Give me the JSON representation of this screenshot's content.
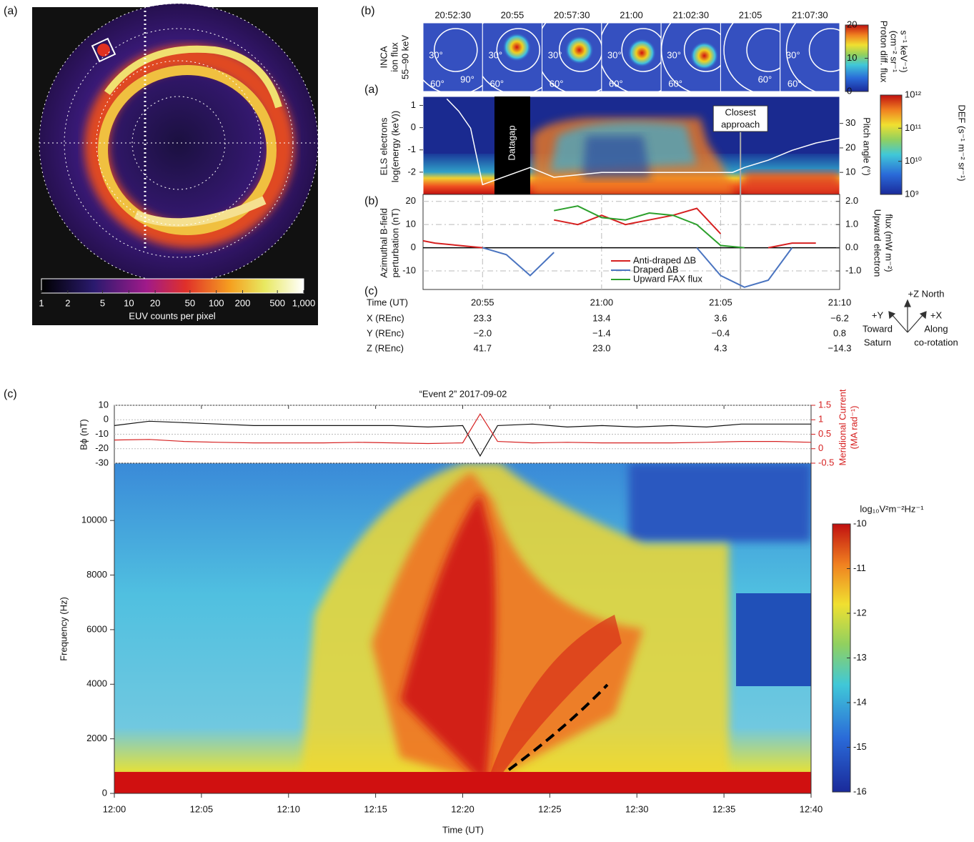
{
  "panel_labels": [
    "(a)",
    "(b)",
    "(a)",
    "(b)",
    "(c)",
    "(c)"
  ],
  "chart_data": [
    {
      "type": "image",
      "colorbar": {
        "log": true,
        "lim": [
          1,
          1000
        ],
        "ticks": [
          1,
          2,
          5,
          10,
          20,
          50,
          100,
          200,
          500,
          {
            "value": 1000,
            "label": "1,000"
          }
        ],
        "label": "EUV counts per pixel"
      }
    },
    {
      "type": "image-strip",
      "ylabel": [
        "INCA",
        "ion flux",
        "55–90 keV"
      ],
      "frames": [
        {
          "time": "20:52:30",
          "angles": [
            "30°",
            "60°",
            "90°"
          ]
        },
        {
          "time": "20:55",
          "angles": [
            "30°",
            "60°"
          ]
        },
        {
          "time": "20:57:30",
          "angles": [
            "30°",
            "60°"
          ]
        },
        {
          "time": "21:00",
          "angles": [
            "30°",
            "60°"
          ]
        },
        {
          "time": "21:02:30",
          "angles": [
            "30°",
            "60°"
          ]
        },
        {
          "time": "21:05",
          "angles": [
            "60°"
          ]
        },
        {
          "time": "21:07:30",
          "angles": [
            "30°",
            "60°"
          ]
        }
      ],
      "colorbar": {
        "lim": [
          0,
          20
        ],
        "ticks": [
          0,
          10,
          20
        ],
        "label": [
          "Proton diff. flux",
          "(cm⁻² sr⁻¹",
          "s⁻¹ keV⁻¹)"
        ]
      }
    },
    {
      "type": "spectrogram",
      "xlim": [
        "20:52:30",
        "21:10"
      ],
      "ylabel": [
        "ELS electrons",
        "log(energy (keV))"
      ],
      "ylim": [
        -3,
        1.4
      ],
      "yticks": [
        -2,
        -1,
        0,
        1
      ],
      "y2label": "Pitch angle (°)",
      "y2lim": [
        1,
        41
      ],
      "y2ticks": [
        10,
        20,
        30
      ],
      "annotations": {
        "datagap": "Datagap",
        "closest": [
          "Closest",
          "approach"
        ]
      },
      "series": [
        {
          "color": "#ffffff",
          "axis": "y2",
          "x": [
            "20:53:30",
            "20:54",
            "20:54:30",
            "20:55",
            "20:57",
            "20:58",
            "21:00",
            "21:02",
            "21:04",
            "21:05:30",
            "21:06",
            "21:07",
            "21:08",
            "21:09",
            "21:10"
          ],
          "values": [
            40,
            35,
            28,
            5,
            12,
            8,
            10,
            10,
            10,
            10,
            12,
            15,
            19,
            22,
            24
          ]
        }
      ],
      "colorbar": {
        "log": true,
        "lim": [
          1000000000,
          1000000000000
        ],
        "ticks": [
          {
            "value": 1000000000,
            "label": "10⁹"
          },
          {
            "value": 10000000000,
            "label": "10¹⁰"
          },
          {
            "value": 100000000000,
            "label": "10¹¹"
          },
          {
            "value": 1000000000000,
            "label": "10¹²"
          }
        ],
        "label": "DEF (s⁻¹ m⁻² sr⁻¹)"
      }
    },
    {
      "type": "line",
      "xlim": [
        "20:52:30",
        "21:10"
      ],
      "xticks": [
        "20:55",
        "21:00",
        "21:05"
      ],
      "ylabel": [
        "Azimuthal B-field",
        "perturbation (nT)"
      ],
      "ylim": [
        -18,
        23
      ],
      "yticks": [
        -10,
        0,
        10,
        20
      ],
      "y2label": [
        "Upward electron",
        "flux (mW m⁻²)"
      ],
      "y2lim": [
        -1.8,
        2.3
      ],
      "y2ticks": [
        {
          "value": -1,
          "label": "-1.0"
        },
        {
          "value": 0,
          "label": "0.0"
        },
        {
          "value": 1,
          "label": "1.0"
        },
        {
          "value": 2,
          "label": "2.0"
        }
      ],
      "x": [
        "20:52:30",
        "20:53",
        "20:54",
        "20:55",
        "20:56",
        "20:57",
        "20:58",
        "20:59",
        "21:00",
        "21:01",
        "21:02",
        "21:03",
        "21:04",
        "21:05",
        "21:06",
        "21:07",
        "21:08",
        "21:09"
      ],
      "series": [
        {
          "name": "Anti-draped ΔB",
          "color": "#d62020",
          "values": [
            3,
            2,
            1,
            0,
            null,
            null,
            12,
            10,
            14,
            10,
            12,
            14,
            17,
            6,
            null,
            0,
            2,
            2
          ]
        },
        {
          "name": "Draped ΔB",
          "color": "#4a74c0",
          "values": [
            null,
            null,
            null,
            0,
            -3,
            -12,
            -2,
            null,
            null,
            null,
            null,
            null,
            0,
            -12,
            -17,
            -14,
            0,
            null
          ]
        },
        {
          "name": "Upward FAX flux",
          "color": "#2ca02c",
          "axis": "y2",
          "values": [
            null,
            null,
            null,
            null,
            null,
            null,
            1.6,
            1.8,
            1.3,
            1.2,
            1.5,
            1.4,
            1.0,
            0.1,
            0,
            null,
            null,
            null
          ]
        }
      ]
    },
    {
      "type": "line-spectrogram",
      "title": "“Event 2” 2017-09-02",
      "xlim": [
        "12:00",
        "12:40"
      ],
      "xticks": [
        "12:00",
        "12:05",
        "12:10",
        "12:15",
        "12:20",
        "12:25",
        "12:30",
        "12:35",
        "12:40"
      ],
      "xlabel": "Time (UT)",
      "ylabel": "Bϕ (nT)",
      "ylim": [
        -30,
        10
      ],
      "yticks": [
        -30,
        -20,
        -10,
        0,
        10
      ],
      "y2label": [
        "Meridional Current",
        "(MA rad⁻¹)"
      ],
      "y2lim": [
        -0.5,
        1.5
      ],
      "y2ticks": [
        -0.5,
        0,
        0.5,
        1,
        1.5
      ],
      "x": [
        "12:00",
        "12:02",
        "12:04",
        "12:06",
        "12:08",
        "12:10",
        "12:12",
        "12:14",
        "12:16",
        "12:18",
        "12:20",
        "12:21",
        "12:22",
        "12:24",
        "12:26",
        "12:28",
        "12:30",
        "12:32",
        "12:34",
        "12:36",
        "12:38",
        "12:40"
      ],
      "series": [
        {
          "color": "#111111",
          "values": [
            -4,
            -1,
            -2,
            -3,
            -4,
            -4,
            -4,
            -4,
            -4,
            -5,
            -4,
            -25,
            -4,
            -3,
            -5,
            -4,
            -5,
            -4,
            -5,
            -3,
            -3,
            -3
          ]
        },
        {
          "color": "#d62020",
          "axis": "y2",
          "values": [
            0.3,
            0.32,
            0.25,
            0.22,
            0.2,
            0.2,
            0.2,
            0.22,
            0.2,
            0.18,
            0.2,
            1.2,
            0.25,
            0.2,
            0.22,
            0.2,
            0.2,
            0.2,
            0.22,
            0.25,
            0.25,
            0.22
          ]
        }
      ],
      "spectrogram": {
        "ylabel": "Frequency (Hz)",
        "ylim": [
          0,
          12100
        ],
        "yticks": [
          0,
          2000,
          4000,
          6000,
          8000,
          10000
        ]
      },
      "colorbar": {
        "lim": [
          -16,
          -10
        ],
        "ticks": [
          -16,
          -15,
          -14,
          -13,
          -12,
          -11,
          -10
        ],
        "label": "log₁₀V²m⁻²Hz⁻¹"
      }
    }
  ],
  "table": {
    "header": [
      "Time (UT)",
      "20:55",
      "21:00",
      "21:05",
      "21:10"
    ],
    "rows": [
      [
        "X (REnc)",
        "23.3",
        "13.4",
        "3.6",
        "−6.2"
      ],
      [
        "Y (REnc)",
        "−2.0",
        "−1.4",
        "−0.4",
        "0.8"
      ],
      [
        "Z (REnc)",
        "41.7",
        "23.0",
        "4.3",
        "−14.3"
      ]
    ]
  },
  "axes_key": {
    "z": "+Z North",
    "y": [
      "+Y",
      "Toward",
      "Saturn"
    ],
    "x": [
      "+X",
      "Along",
      "co-rotation"
    ]
  }
}
